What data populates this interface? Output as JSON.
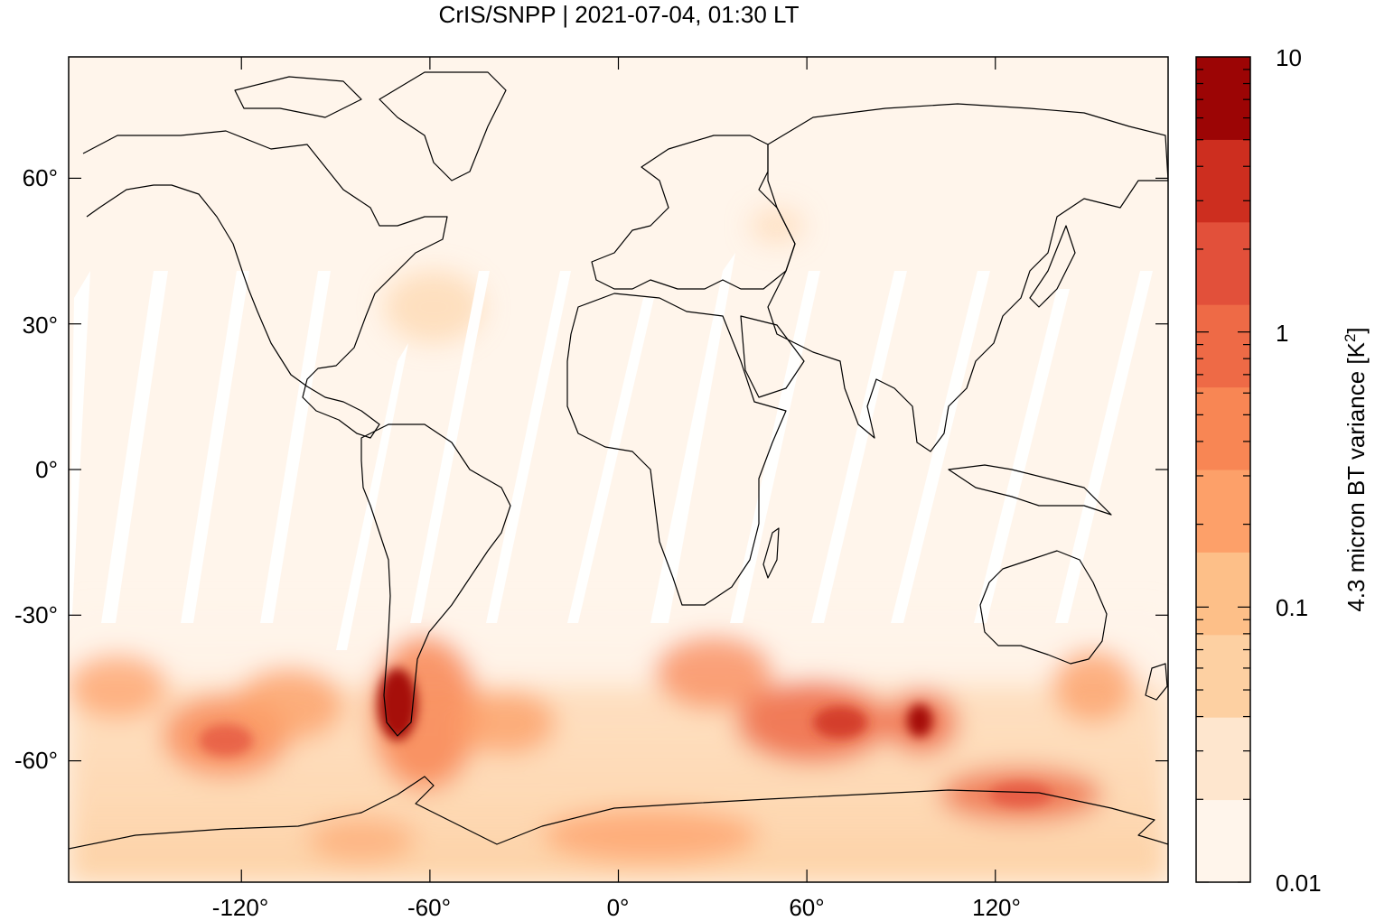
{
  "title": "CrIS/SNPP | 2021-07-04, 01:30 LT",
  "map": {
    "projection": "equirectangular",
    "lon_range": [
      -175,
      175
    ],
    "lat_range": [
      -85,
      85
    ],
    "coastlines": true,
    "y_ticks": [
      {
        "label": "60°",
        "value": 60
      },
      {
        "label": "30°",
        "value": 30
      },
      {
        "label": "0°",
        "value": 0
      },
      {
        "label": "-30°",
        "value": -30
      },
      {
        "label": "-60°",
        "value": -60
      }
    ],
    "x_ticks": [
      {
        "label": "-120°",
        "value": -120
      },
      {
        "label": "-60°",
        "value": -60
      },
      {
        "label": "0°",
        "value": 0
      },
      {
        "label": "60°",
        "value": 60
      },
      {
        "label": "120°",
        "value": 120
      }
    ],
    "gap_stripes": "white diagonal gaps between satellite swaths",
    "hotspots": [
      {
        "region": "Southern Andes / Patagonia",
        "lon": -72,
        "lat": -48,
        "level": "high"
      },
      {
        "region": "Southern Indian Ocean",
        "lon": 95,
        "lat": -52,
        "level": "high"
      },
      {
        "region": "South of Australia",
        "lon": 145,
        "lat": -45,
        "level": "medium"
      },
      {
        "region": "South Pacific",
        "lon": -125,
        "lat": -55,
        "level": "medium"
      },
      {
        "region": "Antarctic coast",
        "lon": 130,
        "lat": -72,
        "level": "medium"
      }
    ]
  },
  "colorbar": {
    "label": "4.3 micron BT variance [K",
    "label_sup": "2",
    "label_end": "]",
    "scale": "log",
    "range": [
      0.01,
      10
    ],
    "tick_labels": [
      {
        "label": "10",
        "value": 10
      },
      {
        "label": "1",
        "value": 1
      },
      {
        "label": "0.1",
        "value": 0.1
      },
      {
        "label": "0.01",
        "value": 0.01
      }
    ],
    "colors": [
      "#fff5eb",
      "#fee6ce",
      "#fdd0a2",
      "#fdbf88",
      "#fda069",
      "#f88654",
      "#ee6a46",
      "#e2503a",
      "#cd2e1f",
      "#9c0505"
    ]
  }
}
